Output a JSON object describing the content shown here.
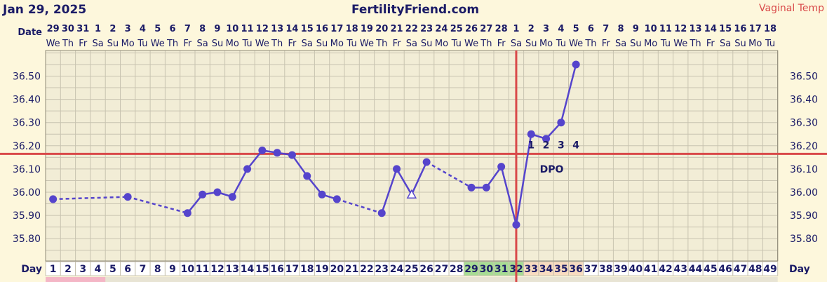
{
  "header": {
    "date_text": "Jan 29, 2025",
    "site_title": "FertilityFriend.com",
    "temp_type": "Vaginal Temp"
  },
  "row_labels": {
    "date": "Date",
    "day": "Day"
  },
  "dpo_label": "DPO",
  "colors": {
    "background": "#fdf7dc",
    "plot_background": "#f2edd6",
    "grid": "#c8c3b0",
    "grid_dark": "#8f8a78",
    "line": "#5544cc",
    "threshold": "#d94a4a",
    "header_text": "#1a1a66",
    "temp_type_text": "#d94a4a",
    "fertile_cell": "#a8dc94",
    "luteal_cell": "#f8dcc0"
  },
  "chart_data": {
    "type": "line",
    "title": "FertilityFriend.com",
    "ylim": [
      35.7,
      36.6
    ],
    "yticks": [
      "35.80",
      "35.90",
      "36.00",
      "36.10",
      "36.20",
      "36.30",
      "36.40",
      "36.50"
    ],
    "cycle_days": [
      1,
      2,
      3,
      4,
      5,
      6,
      7,
      8,
      9,
      10,
      11,
      12,
      13,
      14,
      15,
      16,
      17,
      18,
      19,
      20,
      21,
      22,
      23,
      24,
      25,
      26,
      27,
      28,
      29,
      30,
      31,
      32,
      33,
      34,
      35,
      36,
      37,
      38,
      39,
      40,
      41,
      42,
      43,
      44,
      45,
      46,
      47,
      48,
      49
    ],
    "date_numbers": [
      "29",
      "30",
      "31",
      "1",
      "2",
      "3",
      "4",
      "5",
      "6",
      "7",
      "8",
      "9",
      "10",
      "11",
      "12",
      "13",
      "14",
      "15",
      "16",
      "17",
      "18",
      "19",
      "20",
      "21",
      "22",
      "23",
      "24",
      "25",
      "26",
      "27",
      "28",
      "1",
      "2",
      "3",
      "4",
      "5",
      "6",
      "7",
      "8",
      "9",
      "10",
      "11",
      "12",
      "13",
      "14",
      "15",
      "16",
      "17",
      "18"
    ],
    "weekdays": [
      "We",
      "Th",
      "Fr",
      "Sa",
      "Su",
      "Mo",
      "Tu",
      "We",
      "Th",
      "Fr",
      "Sa",
      "Su",
      "Mo",
      "Tu",
      "We",
      "Th",
      "Fr",
      "Sa",
      "Su",
      "Mo",
      "Tu",
      "We",
      "Th",
      "Fr",
      "Sa",
      "Su",
      "Mo",
      "Tu",
      "We",
      "Th",
      "Fr",
      "Sa",
      "Su",
      "Mo",
      "Tu",
      "We",
      "Th",
      "Fr",
      "Sa",
      "Su",
      "Mo",
      "Tu",
      "We",
      "Th",
      "Fr",
      "Sa",
      "Su",
      "Mo",
      "Tu"
    ],
    "temps": [
      {
        "day": 1,
        "temp": 35.97
      },
      {
        "day": 6,
        "temp": 35.98
      },
      {
        "day": 10,
        "temp": 35.91
      },
      {
        "day": 11,
        "temp": 35.99
      },
      {
        "day": 12,
        "temp": 36.0
      },
      {
        "day": 13,
        "temp": 35.98
      },
      {
        "day": 14,
        "temp": 36.1
      },
      {
        "day": 15,
        "temp": 36.18
      },
      {
        "day": 16,
        "temp": 36.17
      },
      {
        "day": 17,
        "temp": 36.16
      },
      {
        "day": 18,
        "temp": 36.07
      },
      {
        "day": 19,
        "temp": 35.99
      },
      {
        "day": 20,
        "temp": 35.97
      },
      {
        "day": 23,
        "temp": 35.91
      },
      {
        "day": 24,
        "temp": 36.1
      },
      {
        "day": 25,
        "temp": 35.99,
        "open": true
      },
      {
        "day": 26,
        "temp": 36.13
      },
      {
        "day": 29,
        "temp": 36.02
      },
      {
        "day": 30,
        "temp": 36.02
      },
      {
        "day": 31,
        "temp": 36.11
      },
      {
        "day": 32,
        "temp": 35.86
      },
      {
        "day": 33,
        "temp": 36.25
      },
      {
        "day": 34,
        "temp": 36.23
      },
      {
        "day": 35,
        "temp": 36.3
      },
      {
        "day": 36,
        "temp": 36.55
      }
    ],
    "coverline": 36.165,
    "ovulation_day": 32,
    "dpo_numbers": [
      {
        "day": 33,
        "label": "1"
      },
      {
        "day": 34,
        "label": "2"
      },
      {
        "day": 35,
        "label": "3"
      },
      {
        "day": 36,
        "label": "4"
      }
    ],
    "fertile_days": [
      29,
      30,
      31,
      32
    ],
    "luteal_days": [
      33,
      34,
      35,
      36
    ],
    "dashed_gaps": [
      [
        1,
        6
      ],
      [
        6,
        10
      ],
      [
        20,
        23
      ],
      [
        26,
        29
      ]
    ]
  }
}
